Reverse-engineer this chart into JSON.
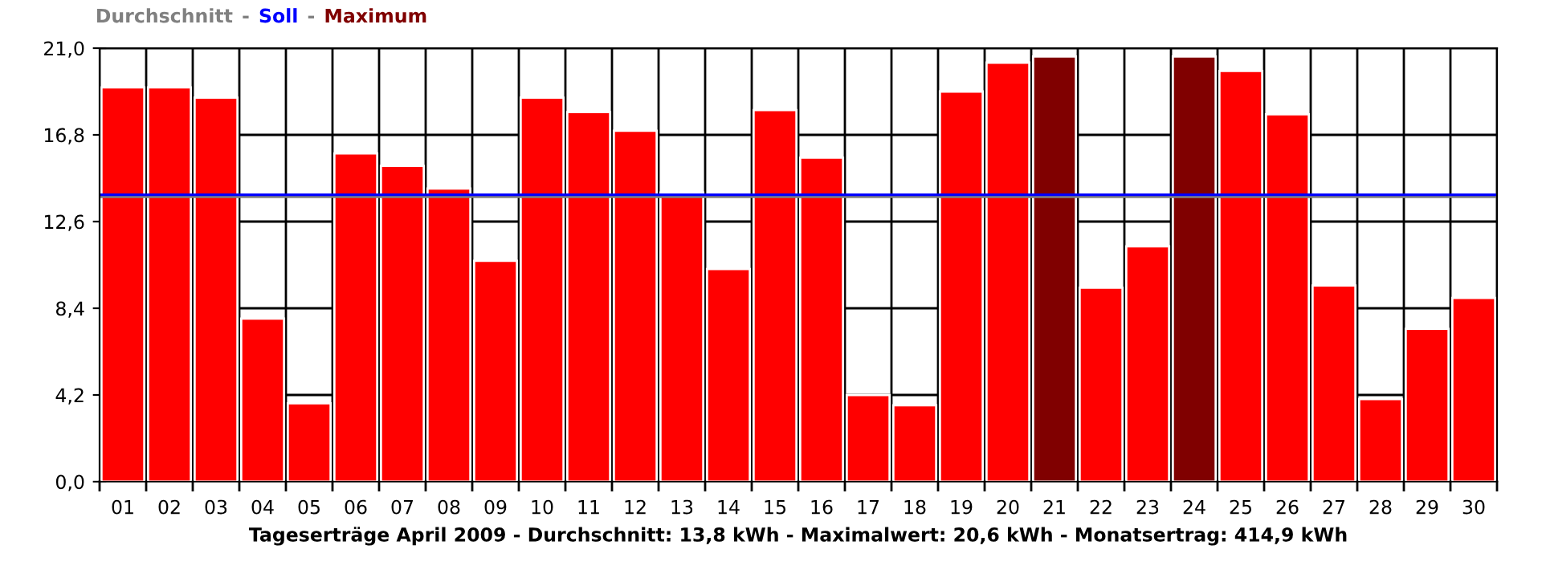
{
  "chart_data": {
    "type": "bar",
    "xlabel": "Tageserträge April 2009 - Durchschnitt: 13,8 kWh - Maximalwert: 20,6 kWh - Monatsertrag: 414,9 kWh",
    "categories": [
      "01",
      "02",
      "03",
      "04",
      "05",
      "06",
      "07",
      "08",
      "09",
      "10",
      "11",
      "12",
      "13",
      "14",
      "15",
      "16",
      "17",
      "18",
      "19",
      "20",
      "21",
      "22",
      "23",
      "24",
      "25",
      "26",
      "27",
      "28",
      "29",
      "30"
    ],
    "series": [
      {
        "color": "#ff0000",
        "values": [
          19.1,
          19.1,
          18.6,
          7.9,
          3.8,
          15.9,
          15.3,
          14.2,
          10.7,
          18.6,
          17.9,
          17.0,
          14.0,
          10.3,
          18.0,
          15.7,
          4.2,
          3.7,
          18.9,
          20.3,
          null,
          9.4,
          11.4,
          null,
          19.9,
          17.8,
          9.5,
          4.0,
          7.4,
          8.9
        ]
      },
      {
        "name": "Maximum",
        "color": "#800000",
        "values": [
          null,
          null,
          null,
          null,
          null,
          null,
          null,
          null,
          null,
          null,
          null,
          null,
          null,
          null,
          null,
          null,
          null,
          null,
          null,
          null,
          20.6,
          null,
          null,
          20.6,
          null,
          null,
          null,
          null,
          null,
          null
        ]
      }
    ],
    "ylim": [
      0,
      21
    ],
    "yticks": [
      {
        "value": 0,
        "label": "0,0"
      },
      {
        "value": 4.2,
        "label": "4,2"
      },
      {
        "value": 8.4,
        "label": "8,4"
      },
      {
        "value": 12.6,
        "label": "12,6"
      },
      {
        "value": 16.8,
        "label": "16,8"
      },
      {
        "value": 21,
        "label": "21,0"
      }
    ],
    "ref_lines": [
      {
        "axis": "y",
        "value": 13.8,
        "label": "Durchschnitt",
        "color": "#808080"
      },
      {
        "axis": "y",
        "value": 13.9,
        "label": "Soll",
        "color": "#0000ff"
      }
    ],
    "annotations": [
      "-",
      "-"
    ],
    "grid": true,
    "legend": "top left"
  }
}
